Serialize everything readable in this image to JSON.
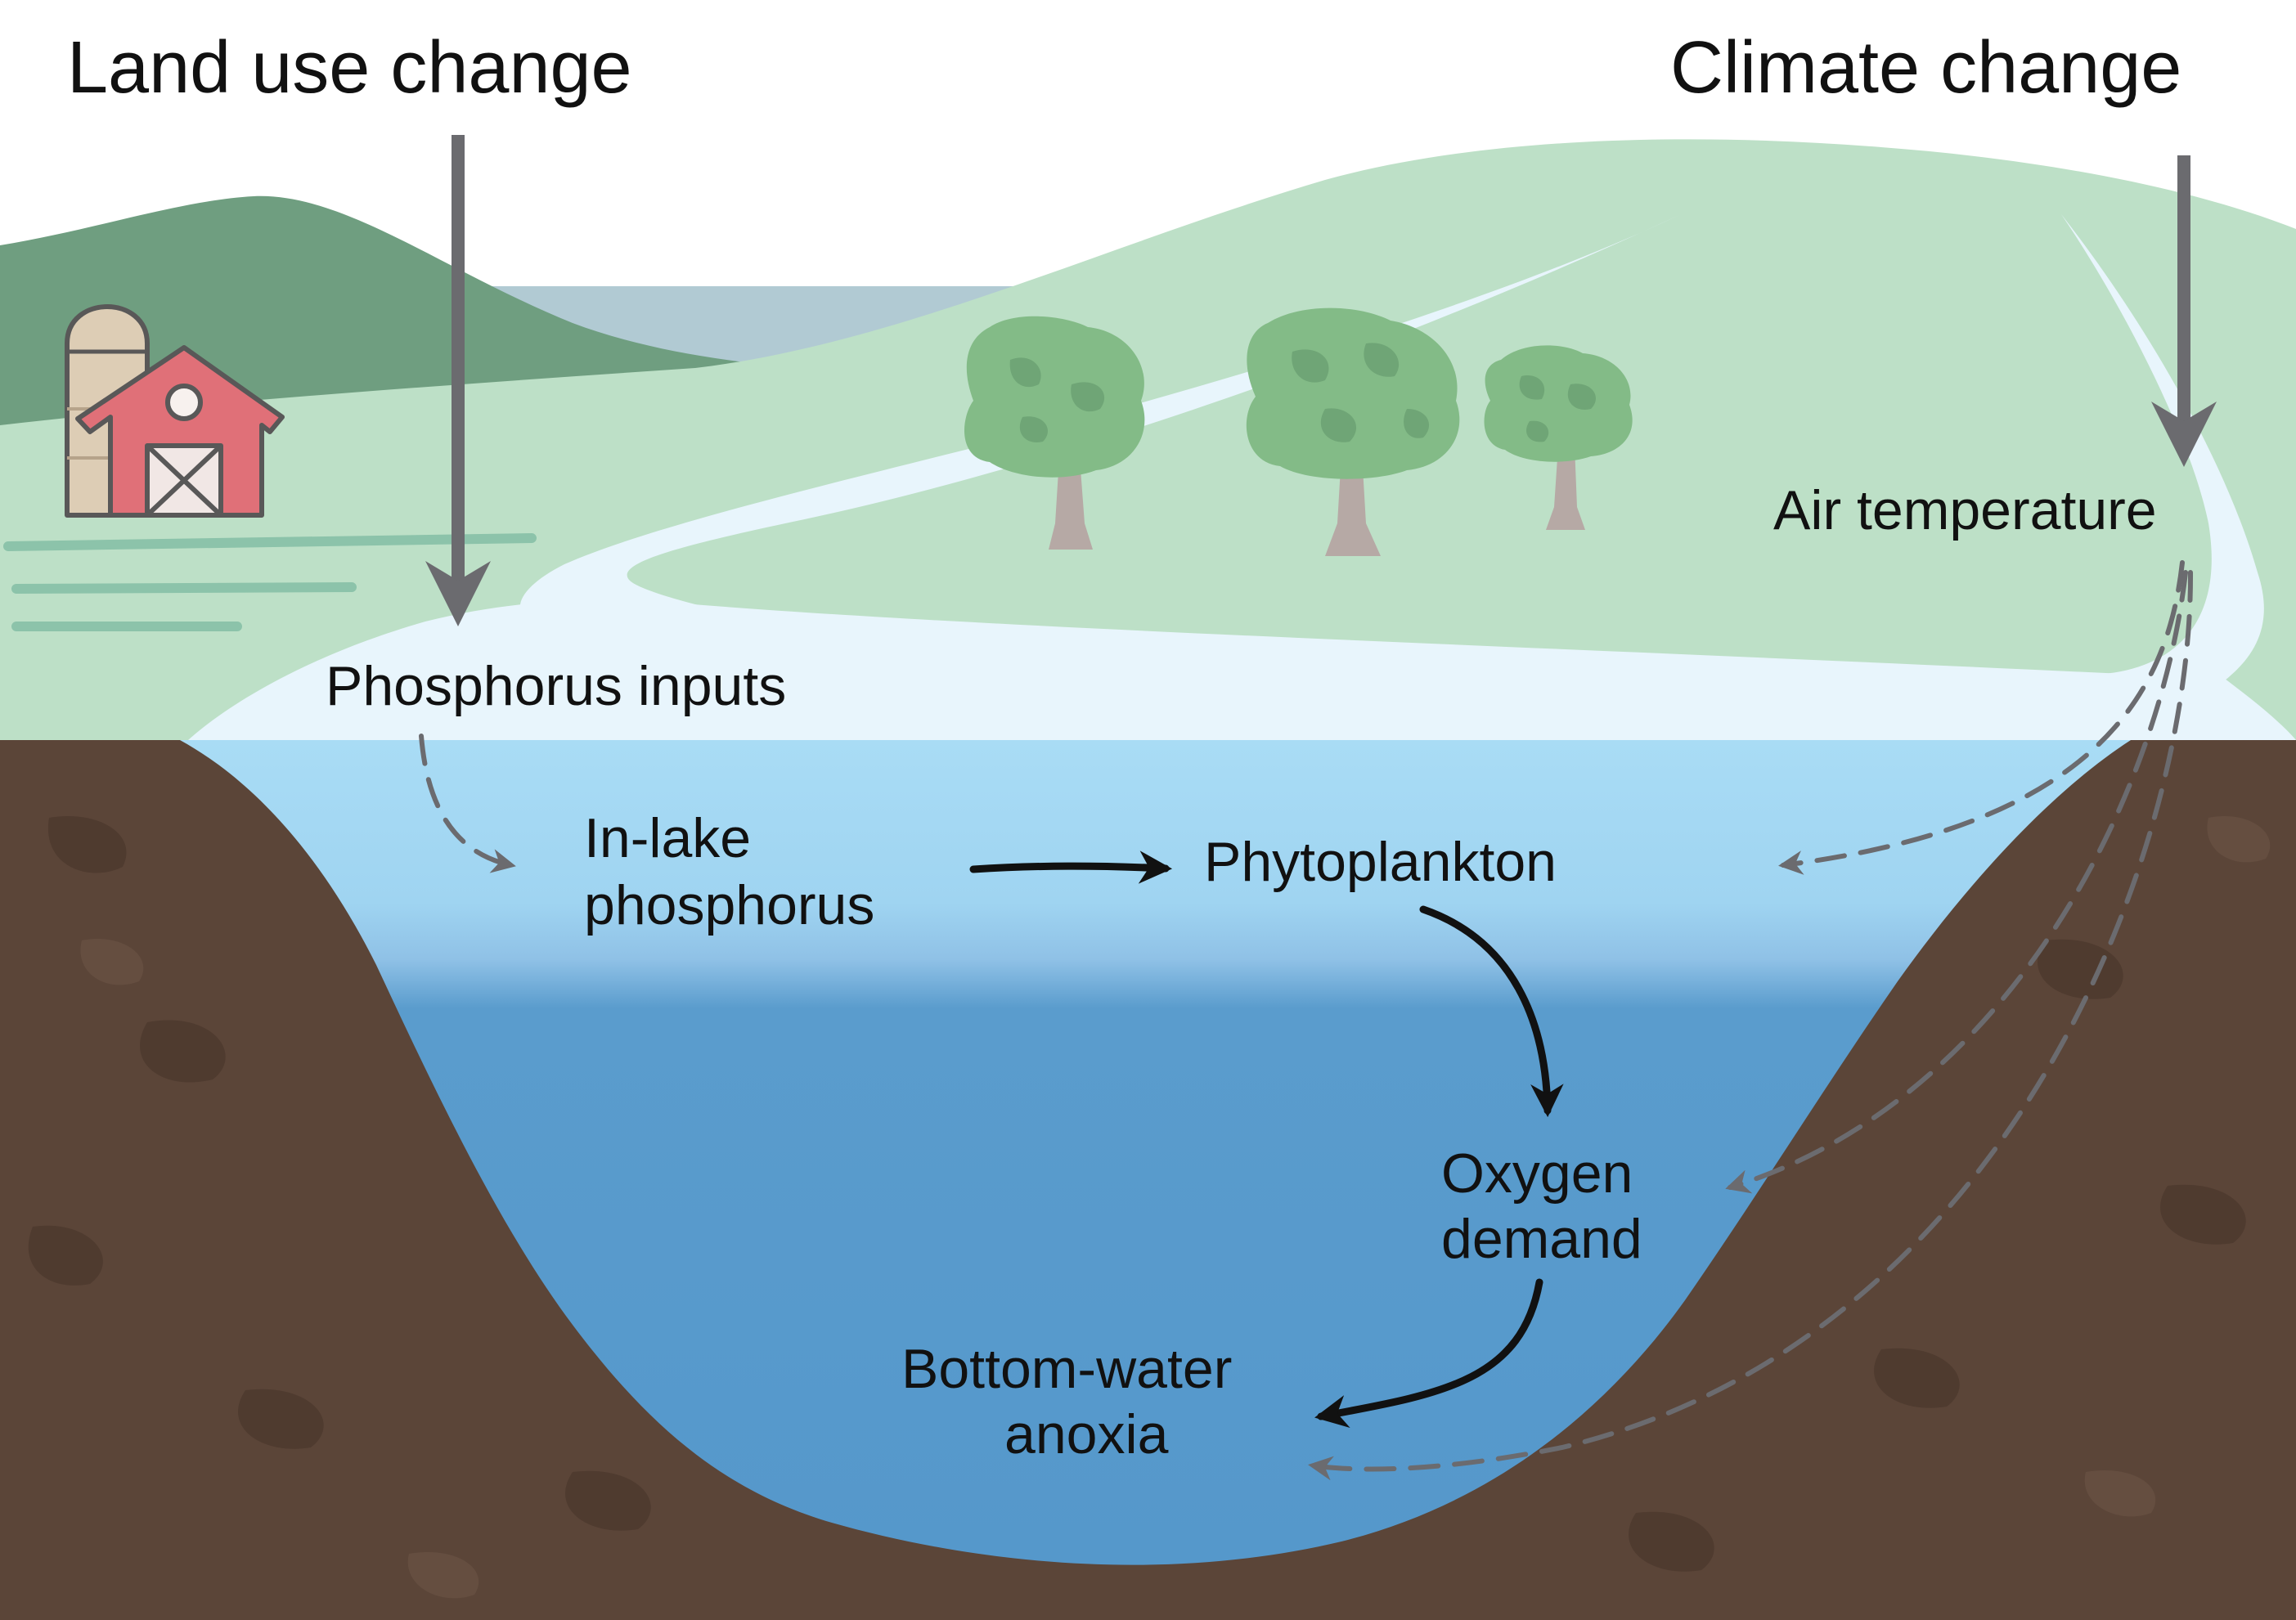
{
  "labels": {
    "land_use_change": "Land use change",
    "climate_change": "Climate change",
    "air_temperature": "Air temperature",
    "phosphorus_inputs": "Phosphorus inputs",
    "in_lake_phosphorus_line1": "In-lake",
    "in_lake_phosphorus_line2": "phosphorus",
    "phytoplankton": "Phytoplankton",
    "oxygen_demand_line1": "Oxygen",
    "oxygen_demand_line2": "demand",
    "bottom_water_anoxia_line1": "Bottom-water",
    "bottom_water_anoxia_line2": "anoxia"
  },
  "colors": {
    "dark_hill": "#6f9e80",
    "light_hill": "#bde0c7",
    "distant_water": "#b1cad3",
    "stream": "#e8f5fc",
    "soil": "#5b4538",
    "lake_top": "#a9dcf5",
    "lake_deep": "#5598cb",
    "barn_red": "#e07078",
    "silo": "#ddcdb5",
    "tree_canopy": "#83bb87",
    "tree_trunk": "#b6a9a5",
    "gray_arrow": "#6b6b6f",
    "black_arrow": "#111111"
  }
}
